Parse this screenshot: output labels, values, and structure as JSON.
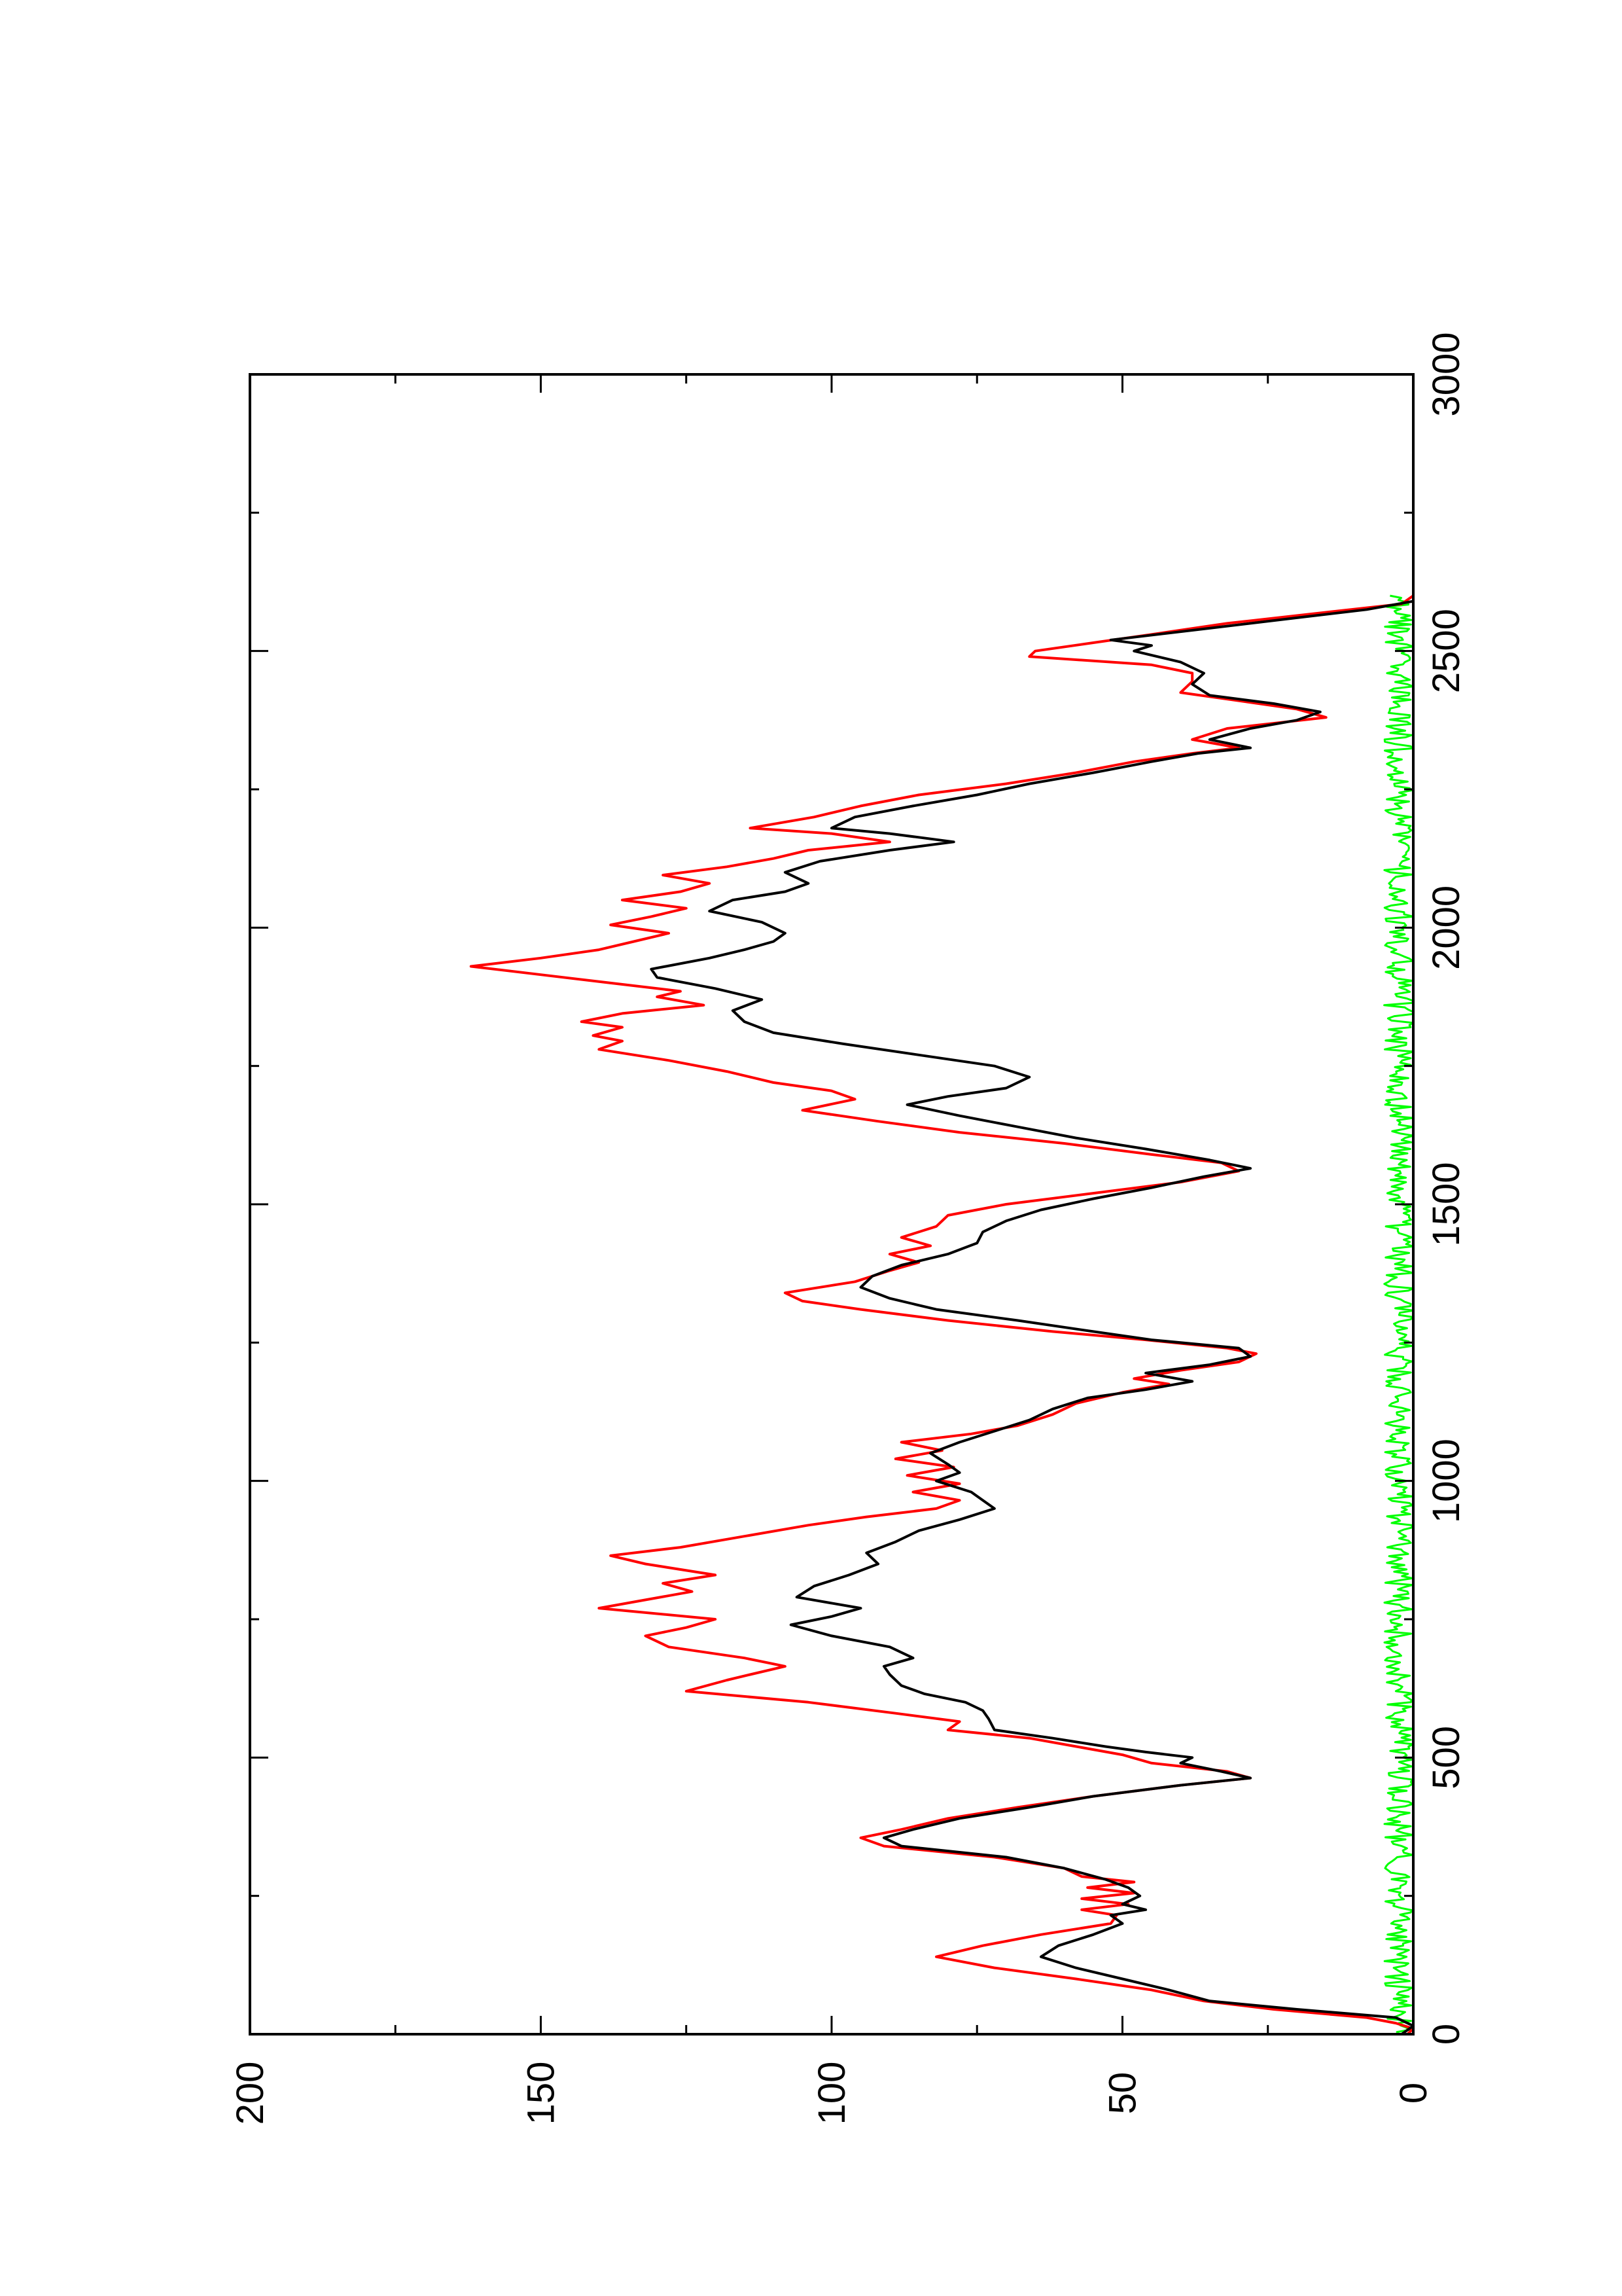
{
  "chart_data": {
    "type": "line",
    "orientation": "rotated-90-ccw",
    "title": "",
    "xlabel": "",
    "ylabel": "",
    "xlim": [
      0,
      3000
    ],
    "ylim": [
      0,
      200
    ],
    "x_major_ticks": [
      0,
      500,
      1000,
      1500,
      2000,
      2500,
      3000
    ],
    "x_minor_ticks": [
      250,
      750,
      1250,
      1750,
      2250,
      2750
    ],
    "y_major_ticks": [
      0,
      50,
      100,
      150,
      200
    ],
    "y_minor_ticks": [
      25,
      75,
      125,
      175
    ],
    "x_tick_labels": [
      "0",
      "500",
      "1000",
      "1500",
      "2000",
      "2500",
      "3000"
    ],
    "y_tick_labels": [
      "0",
      "50",
      "100",
      "150",
      "200"
    ],
    "grid": false,
    "legend": "none",
    "series": [
      {
        "color": "#000000",
        "points": [
          [
            0,
            2
          ],
          [
            15,
            0
          ],
          [
            30,
            3
          ],
          [
            45,
            20
          ],
          [
            60,
            35
          ],
          [
            80,
            42
          ],
          [
            100,
            50
          ],
          [
            120,
            58
          ],
          [
            140,
            64
          ],
          [
            160,
            61
          ],
          [
            180,
            55
          ],
          [
            200,
            50
          ],
          [
            215,
            52
          ],
          [
            225,
            46
          ],
          [
            235,
            50
          ],
          [
            250,
            47
          ],
          [
            265,
            49
          ],
          [
            280,
            53
          ],
          [
            300,
            60
          ],
          [
            320,
            70
          ],
          [
            340,
            88
          ],
          [
            355,
            91
          ],
          [
            370,
            86
          ],
          [
            390,
            78
          ],
          [
            410,
            66
          ],
          [
            430,
            55
          ],
          [
            450,
            40
          ],
          [
            463,
            28
          ],
          [
            475,
            33
          ],
          [
            490,
            40
          ],
          [
            500,
            38
          ],
          [
            510,
            46
          ],
          [
            520,
            53
          ],
          [
            535,
            62
          ],
          [
            550,
            72
          ],
          [
            570,
            73
          ],
          [
            585,
            74
          ],
          [
            600,
            77
          ],
          [
            615,
            84
          ],
          [
            630,
            88
          ],
          [
            650,
            90
          ],
          [
            665,
            91
          ],
          [
            680,
            86
          ],
          [
            700,
            90
          ],
          [
            720,
            100
          ],
          [
            740,
            107
          ],
          [
            755,
            100
          ],
          [
            770,
            95
          ],
          [
            790,
            106
          ],
          [
            810,
            103
          ],
          [
            830,
            97
          ],
          [
            850,
            92
          ],
          [
            870,
            94
          ],
          [
            890,
            89
          ],
          [
            910,
            85
          ],
          [
            930,
            78
          ],
          [
            950,
            72
          ],
          [
            965,
            74
          ],
          [
            980,
            76
          ],
          [
            1000,
            82
          ],
          [
            1015,
            78
          ],
          [
            1030,
            80
          ],
          [
            1050,
            83
          ],
          [
            1070,
            78
          ],
          [
            1090,
            72
          ],
          [
            1110,
            66
          ],
          [
            1130,
            62
          ],
          [
            1150,
            56
          ],
          [
            1165,
            46
          ],
          [
            1180,
            38
          ],
          [
            1195,
            46
          ],
          [
            1210,
            35
          ],
          [
            1225,
            28
          ],
          [
            1240,
            30
          ],
          [
            1255,
            45
          ],
          [
            1270,
            55
          ],
          [
            1290,
            68
          ],
          [
            1310,
            82
          ],
          [
            1330,
            90
          ],
          [
            1350,
            95
          ],
          [
            1370,
            93
          ],
          [
            1390,
            88
          ],
          [
            1410,
            80
          ],
          [
            1430,
            75
          ],
          [
            1450,
            74
          ],
          [
            1470,
            70
          ],
          [
            1490,
            64
          ],
          [
            1510,
            55
          ],
          [
            1530,
            45
          ],
          [
            1550,
            36
          ],
          [
            1565,
            28
          ],
          [
            1580,
            35
          ],
          [
            1600,
            46
          ],
          [
            1620,
            58
          ],
          [
            1640,
            68
          ],
          [
            1660,
            78
          ],
          [
            1680,
            87
          ],
          [
            1695,
            80
          ],
          [
            1710,
            70
          ],
          [
            1730,
            66
          ],
          [
            1750,
            72
          ],
          [
            1770,
            85
          ],
          [
            1790,
            98
          ],
          [
            1810,
            110
          ],
          [
            1830,
            115
          ],
          [
            1850,
            117
          ],
          [
            1870,
            112
          ],
          [
            1890,
            120
          ],
          [
            1910,
            130
          ],
          [
            1925,
            131
          ],
          [
            1945,
            121
          ],
          [
            1960,
            115
          ],
          [
            1975,
            110
          ],
          [
            1990,
            108
          ],
          [
            2010,
            112
          ],
          [
            2030,
            121
          ],
          [
            2050,
            117
          ],
          [
            2065,
            108
          ],
          [
            2080,
            104
          ],
          [
            2100,
            108
          ],
          [
            2120,
            102
          ],
          [
            2140,
            90
          ],
          [
            2155,
            79
          ],
          [
            2170,
            90
          ],
          [
            2180,
            100
          ],
          [
            2200,
            96
          ],
          [
            2220,
            86
          ],
          [
            2240,
            75
          ],
          [
            2260,
            66
          ],
          [
            2280,
            55
          ],
          [
            2300,
            45
          ],
          [
            2315,
            37
          ],
          [
            2325,
            28
          ],
          [
            2340,
            35
          ],
          [
            2360,
            28
          ],
          [
            2375,
            20
          ],
          [
            2390,
            16
          ],
          [
            2405,
            24
          ],
          [
            2420,
            35
          ],
          [
            2440,
            38
          ],
          [
            2460,
            36
          ],
          [
            2480,
            40
          ],
          [
            2500,
            48
          ],
          [
            2510,
            45
          ],
          [
            2520,
            52
          ],
          [
            2540,
            36
          ],
          [
            2560,
            20
          ],
          [
            2575,
            8
          ],
          [
            2590,
            0
          ]
        ]
      },
      {
        "color": "#ff0000",
        "points": [
          [
            0,
            1
          ],
          [
            10,
            0
          ],
          [
            20,
            3
          ],
          [
            30,
            8
          ],
          [
            45,
            24
          ],
          [
            60,
            36
          ],
          [
            80,
            45
          ],
          [
            100,
            58
          ],
          [
            120,
            72
          ],
          [
            140,
            82
          ],
          [
            160,
            74
          ],
          [
            180,
            64
          ],
          [
            200,
            52
          ],
          [
            215,
            51
          ],
          [
            225,
            57
          ],
          [
            235,
            49
          ],
          [
            245,
            57
          ],
          [
            255,
            48
          ],
          [
            265,
            56
          ],
          [
            275,
            48
          ],
          [
            285,
            57
          ],
          [
            300,
            60
          ],
          [
            320,
            72
          ],
          [
            340,
            91
          ],
          [
            355,
            95
          ],
          [
            370,
            88
          ],
          [
            390,
            80
          ],
          [
            410,
            68
          ],
          [
            430,
            55
          ],
          [
            450,
            40
          ],
          [
            463,
            28
          ],
          [
            475,
            32
          ],
          [
            490,
            45
          ],
          [
            505,
            50
          ],
          [
            520,
            58
          ],
          [
            535,
            66
          ],
          [
            550,
            80
          ],
          [
            565,
            78
          ],
          [
            580,
            89
          ],
          [
            600,
            104
          ],
          [
            620,
            125
          ],
          [
            640,
            118
          ],
          [
            650,
            114
          ],
          [
            665,
            108
          ],
          [
            680,
            115
          ],
          [
            700,
            128
          ],
          [
            720,
            132
          ],
          [
            735,
            125
          ],
          [
            750,
            120
          ],
          [
            770,
            140
          ],
          [
            785,
            132
          ],
          [
            800,
            124
          ],
          [
            815,
            129
          ],
          [
            830,
            120
          ],
          [
            850,
            132
          ],
          [
            865,
            138
          ],
          [
            880,
            126
          ],
          [
            900,
            115
          ],
          [
            920,
            104
          ],
          [
            935,
            94
          ],
          [
            950,
            82
          ],
          [
            965,
            78
          ],
          [
            980,
            86
          ],
          [
            995,
            78
          ],
          [
            1010,
            87
          ],
          [
            1025,
            79
          ],
          [
            1040,
            89
          ],
          [
            1055,
            81
          ],
          [
            1070,
            88
          ],
          [
            1085,
            76
          ],
          [
            1100,
            68
          ],
          [
            1120,
            62
          ],
          [
            1140,
            58
          ],
          [
            1160,
            50
          ],
          [
            1175,
            42
          ],
          [
            1185,
            48
          ],
          [
            1200,
            40
          ],
          [
            1215,
            30
          ],
          [
            1230,
            27
          ],
          [
            1240,
            32
          ],
          [
            1255,
            46
          ],
          [
            1270,
            62
          ],
          [
            1290,
            80
          ],
          [
            1310,
            95
          ],
          [
            1325,
            105
          ],
          [
            1340,
            108
          ],
          [
            1360,
            96
          ],
          [
            1380,
            90
          ],
          [
            1395,
            85
          ],
          [
            1410,
            90
          ],
          [
            1425,
            83
          ],
          [
            1440,
            88
          ],
          [
            1460,
            82
          ],
          [
            1480,
            80
          ],
          [
            1500,
            70
          ],
          [
            1520,
            55
          ],
          [
            1540,
            40
          ],
          [
            1560,
            30
          ],
          [
            1575,
            33
          ],
          [
            1590,
            45
          ],
          [
            1610,
            60
          ],
          [
            1630,
            78
          ],
          [
            1650,
            92
          ],
          [
            1670,
            105
          ],
          [
            1690,
            96
          ],
          [
            1705,
            100
          ],
          [
            1720,
            110
          ],
          [
            1740,
            118
          ],
          [
            1760,
            128
          ],
          [
            1780,
            140
          ],
          [
            1795,
            136
          ],
          [
            1805,
            141
          ],
          [
            1820,
            136
          ],
          [
            1830,
            143
          ],
          [
            1845,
            136
          ],
          [
            1860,
            122
          ],
          [
            1875,
            130
          ],
          [
            1885,
            126
          ],
          [
            1900,
            138
          ],
          [
            1915,
            150
          ],
          [
            1930,
            162
          ],
          [
            1945,
            150
          ],
          [
            1960,
            140
          ],
          [
            1975,
            134
          ],
          [
            1990,
            128
          ],
          [
            2005,
            138
          ],
          [
            2020,
            131
          ],
          [
            2035,
            125
          ],
          [
            2050,
            136
          ],
          [
            2065,
            126
          ],
          [
            2080,
            121
          ],
          [
            2095,
            129
          ],
          [
            2110,
            118
          ],
          [
            2125,
            110
          ],
          [
            2140,
            104
          ],
          [
            2155,
            90
          ],
          [
            2170,
            100
          ],
          [
            2180,
            114
          ],
          [
            2200,
            103
          ],
          [
            2220,
            95
          ],
          [
            2240,
            85
          ],
          [
            2260,
            70
          ],
          [
            2280,
            58
          ],
          [
            2300,
            48
          ],
          [
            2315,
            38
          ],
          [
            2325,
            30
          ],
          [
            2340,
            38
          ],
          [
            2360,
            32
          ],
          [
            2380,
            15
          ],
          [
            2395,
            20
          ],
          [
            2410,
            30
          ],
          [
            2425,
            40
          ],
          [
            2445,
            38
          ],
          [
            2460,
            38
          ],
          [
            2475,
            45
          ],
          [
            2490,
            66
          ],
          [
            2500,
            65
          ],
          [
            2515,
            55
          ],
          [
            2530,
            45
          ],
          [
            2550,
            32
          ],
          [
            2570,
            15
          ],
          [
            2585,
            2
          ],
          [
            2600,
            0
          ]
        ]
      },
      {
        "color": "#00ff00",
        "noise": true,
        "x_range": [
          0,
          2600
        ],
        "baseline": 0,
        "max_amplitude": 5
      }
    ]
  }
}
